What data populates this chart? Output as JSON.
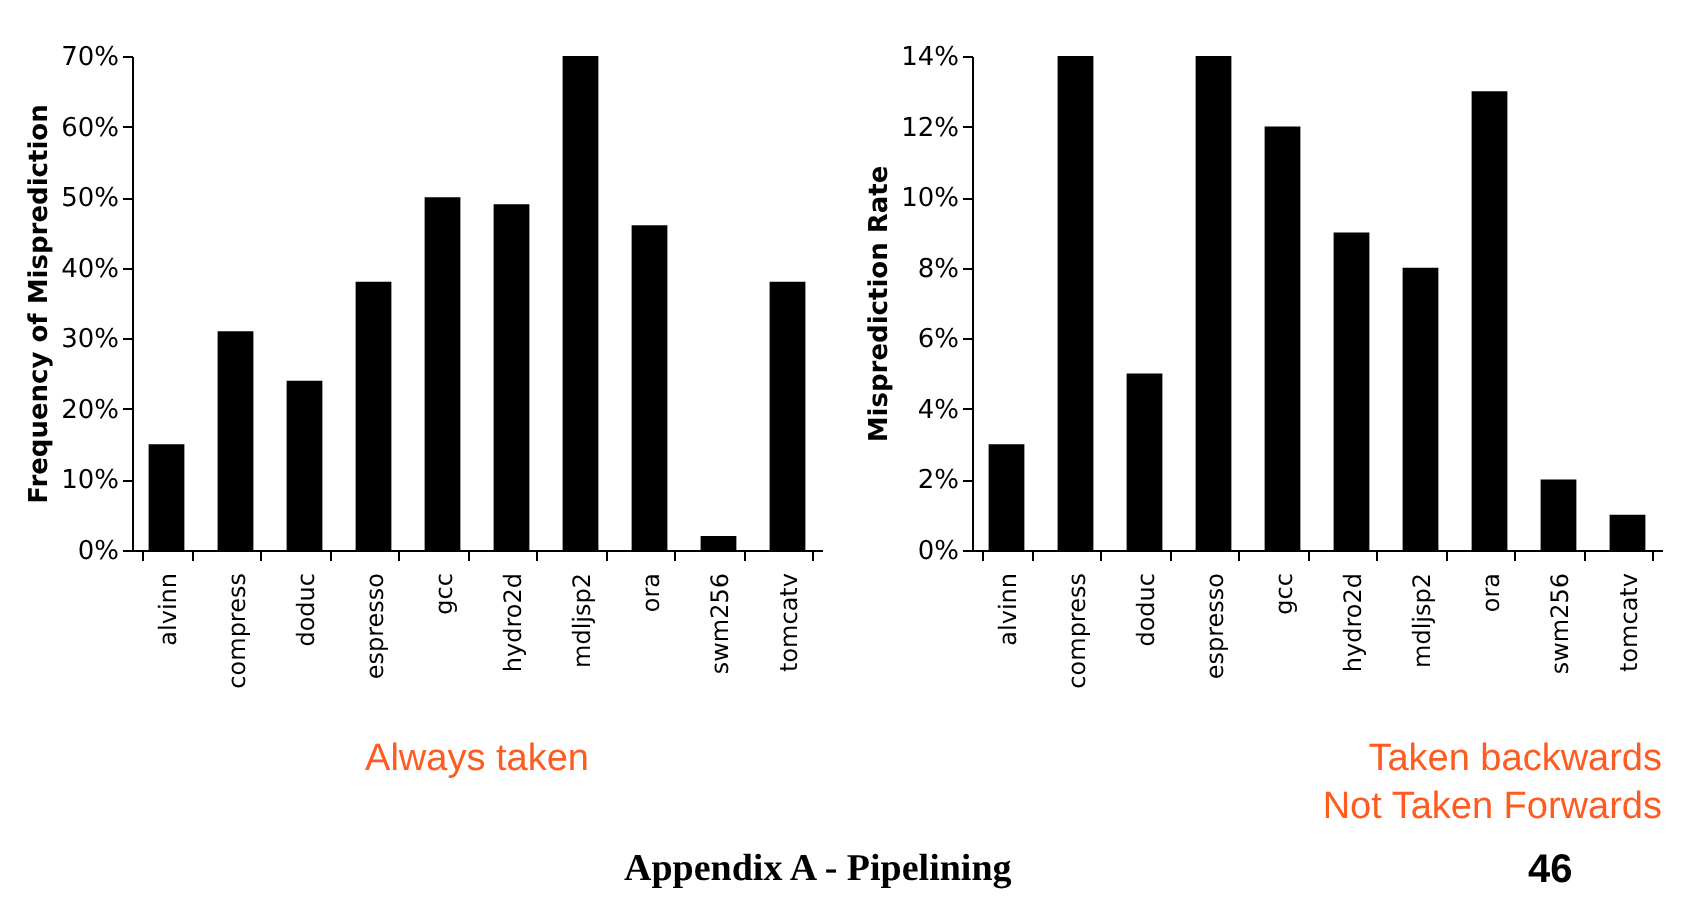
{
  "chart_data": [
    {
      "type": "bar",
      "title": "Always taken",
      "ylabel": "Frequency of Misprediction",
      "categories": [
        "alvinn",
        "compress",
        "doduc",
        "espresso",
        "gcc",
        "hydro2d",
        "mdljsp2",
        "ora",
        "swm256",
        "tomcatv"
      ],
      "series": [
        {
          "color": "#000000",
          "values": [
            15,
            31,
            24,
            38,
            50,
            49,
            70,
            46,
            2,
            38
          ]
        }
      ],
      "ylim": [
        0,
        70
      ],
      "yticks": [
        {
          "value": 0,
          "label": "0%"
        },
        {
          "value": 10,
          "label": "10%"
        },
        {
          "value": 20,
          "label": "20%"
        },
        {
          "value": 30,
          "label": "30%"
        },
        {
          "value": 40,
          "label": "40%"
        },
        {
          "value": 50,
          "label": "50%"
        },
        {
          "value": 60,
          "label": "60%"
        },
        {
          "value": 70,
          "label": "70%"
        }
      ],
      "grid": false,
      "legend": false
    },
    {
      "type": "bar",
      "title": "Taken backwards\nNot Taken Forwards",
      "ylabel": "Misprediction Rate",
      "categories": [
        "alvinn",
        "compress",
        "doduc",
        "espresso",
        "gcc",
        "hydro2d",
        "mdljsp2",
        "ora",
        "swm256",
        "tomcatv"
      ],
      "series": [
        {
          "color": "#000000",
          "values": [
            3,
            14,
            5,
            14,
            12,
            9,
            8,
            13,
            2,
            1
          ]
        }
      ],
      "ylim": [
        0,
        14
      ],
      "yticks": [
        {
          "value": 0,
          "label": "0%"
        },
        {
          "value": 2,
          "label": "2%"
        },
        {
          "value": 4,
          "label": "4%"
        },
        {
          "value": 6,
          "label": "6%"
        },
        {
          "value": 8,
          "label": "8%"
        },
        {
          "value": 10,
          "label": "10%"
        },
        {
          "value": 12,
          "label": "12%"
        },
        {
          "value": 14,
          "label": "14%"
        }
      ],
      "grid": false,
      "legend": false,
      "annotations": [
        "Appendix A - Pipelining",
        "46"
      ]
    }
  ]
}
